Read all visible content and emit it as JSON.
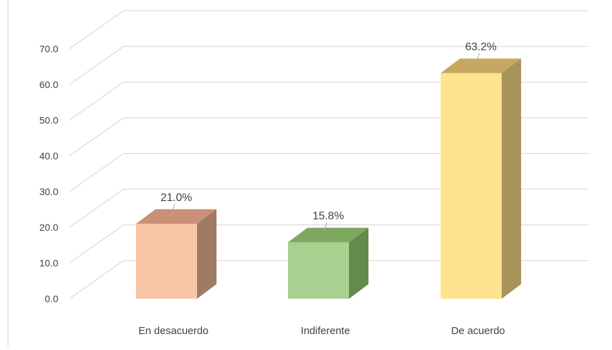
{
  "chart_data": {
    "type": "bar",
    "style": "3d-column",
    "categories": [
      "En desacuerdo",
      "Indiferente",
      "De acuerdo"
    ],
    "values": [
      21.0,
      15.8,
      63.2
    ],
    "value_labels": [
      "21.0%",
      "15.8%",
      "63.2%"
    ],
    "y_ticks": [
      "0.0",
      "10.0",
      "20.0",
      "30.0",
      "40.0",
      "50.0",
      "60.0",
      "70.0"
    ],
    "ylim": [
      0,
      70
    ],
    "title": "",
    "xlabel": "",
    "ylabel": "",
    "grid": true,
    "legend": "none",
    "colors": {
      "bars": [
        {
          "front": "#f8c4a6",
          "top": "#c99077",
          "side": "#a17a66"
        },
        {
          "front": "#a9d08e",
          "top": "#7ea860",
          "side": "#648a4c"
        },
        {
          "front": "#ffe38f",
          "top": "#c7a860",
          "side": "#a8935a"
        }
      ],
      "grid": "#d9d9d9",
      "text": "#404040"
    }
  }
}
